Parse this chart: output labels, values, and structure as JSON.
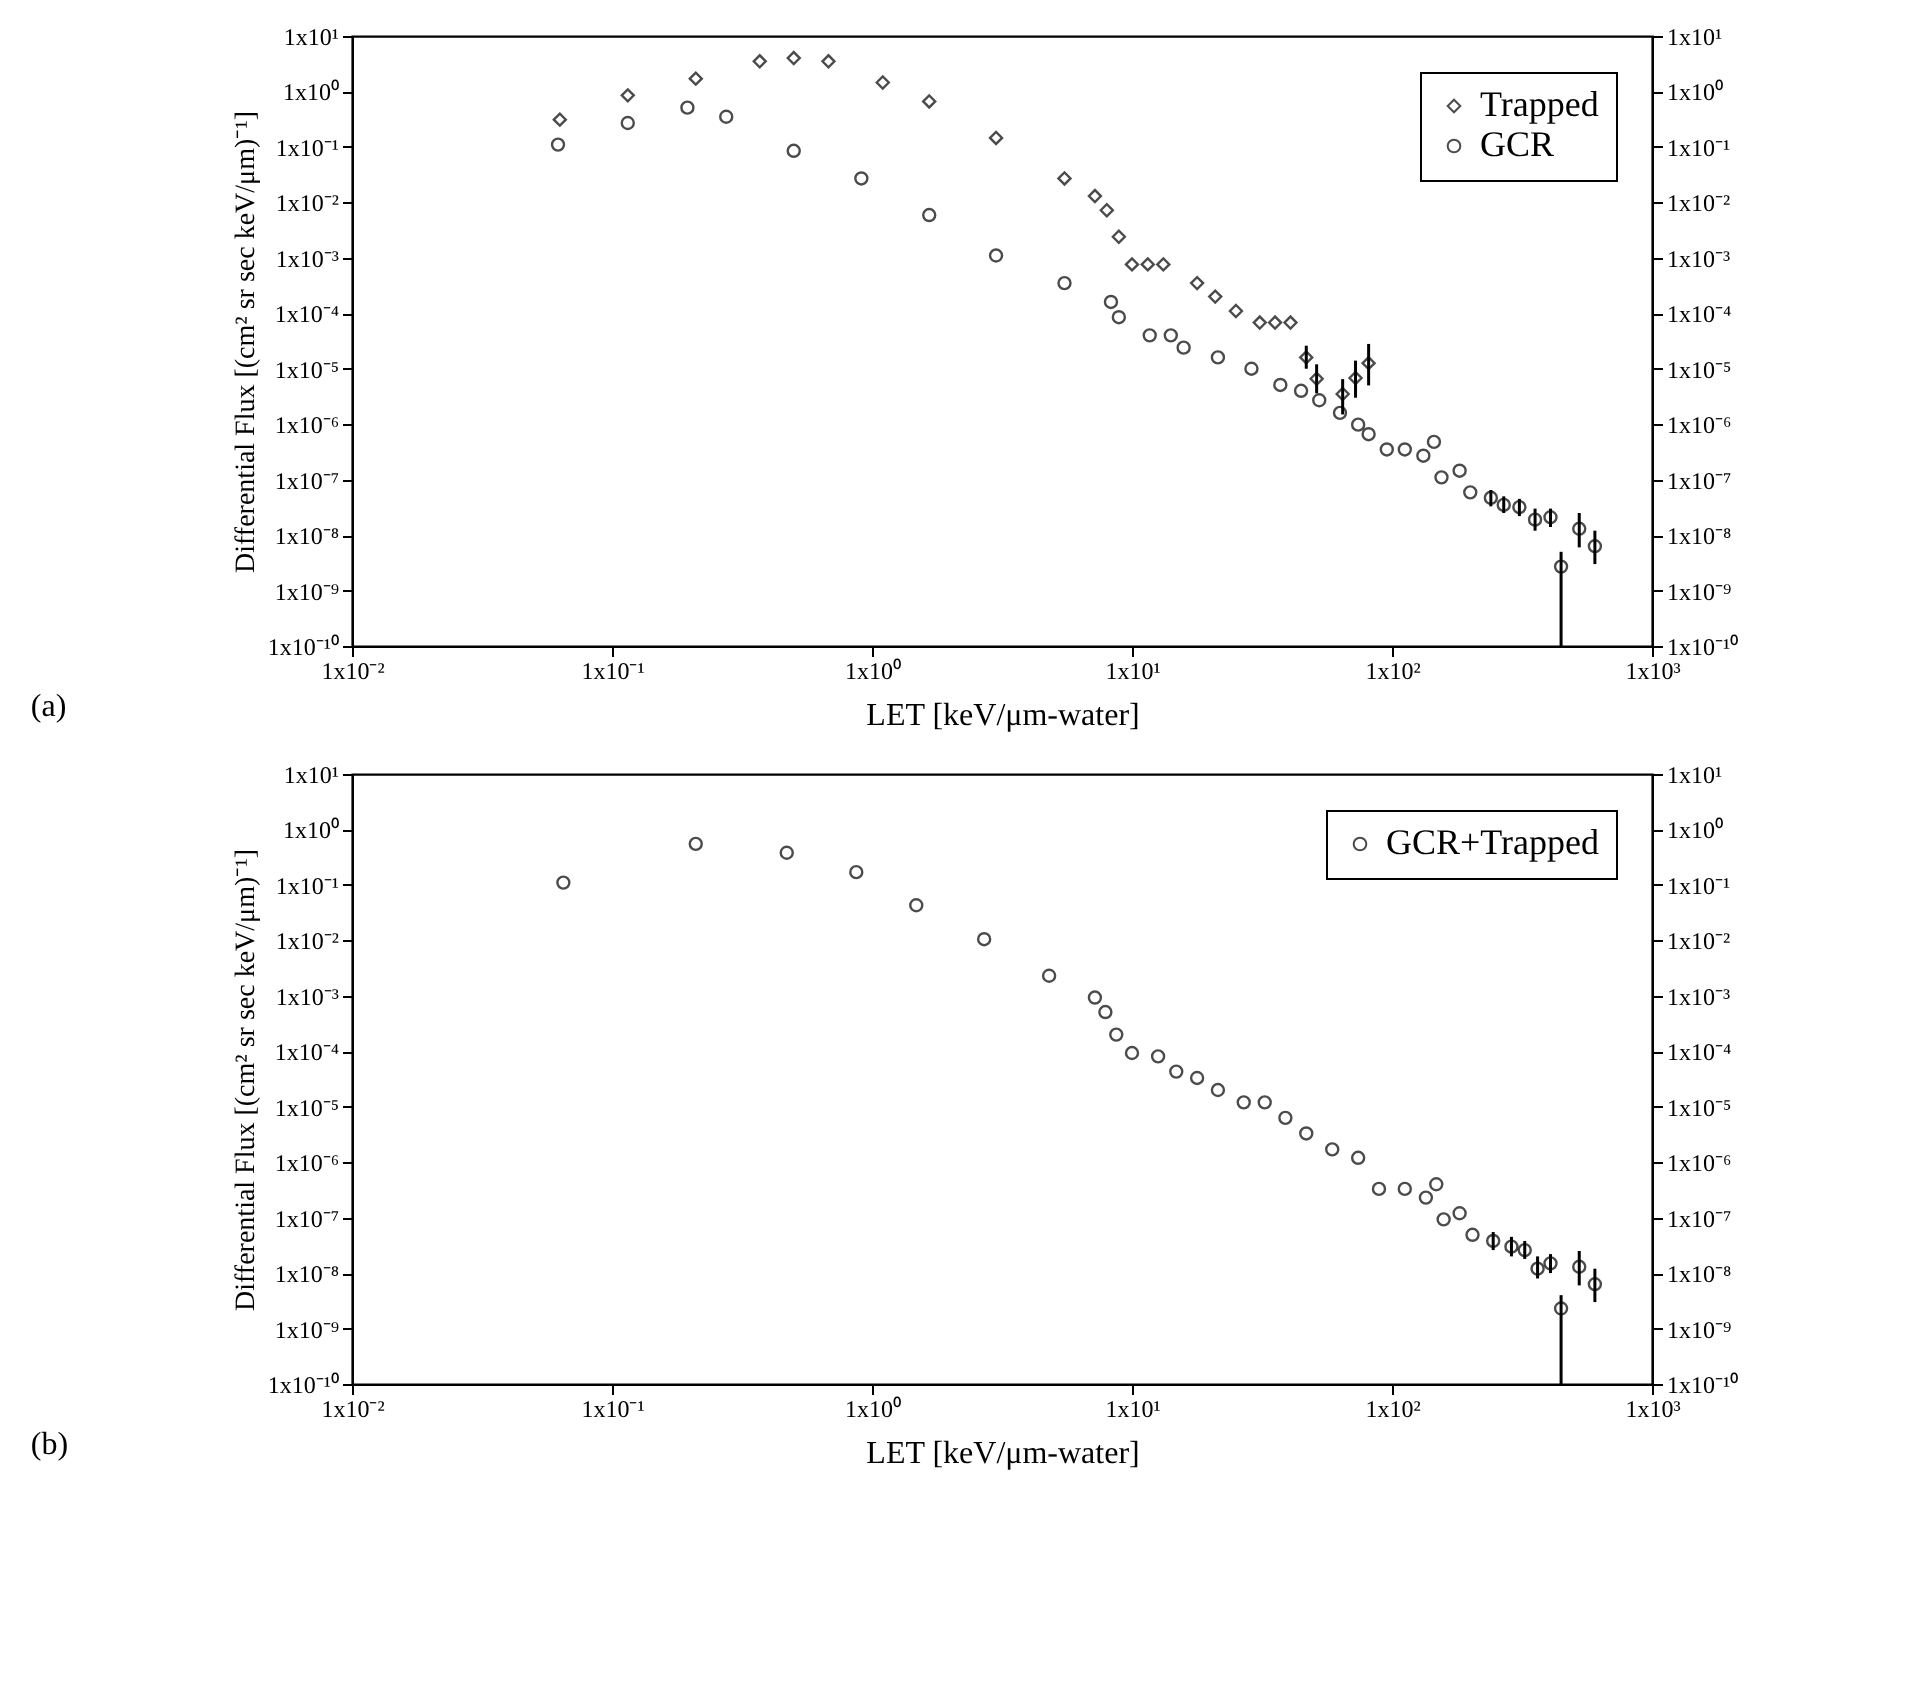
{
  "chart_data": [
    {
      "type": "scatter",
      "xlabel": "LET [keV/μm-water]",
      "ylabel": "Differential Flux [(cm² sr sec keV/μm)⁻¹]",
      "annotations": [
        "(a)"
      ],
      "log": "xy",
      "legend": "top right",
      "xlim": [
        0.01,
        1000
      ],
      "xticks": [
        {
          "value": 0.01,
          "label": "1x10⁻²"
        },
        {
          "value": 0.1,
          "label": "1x10⁻¹"
        },
        {
          "value": 1,
          "label": "1x10⁰"
        },
        {
          "value": 10,
          "label": "1x10¹"
        },
        {
          "value": 100,
          "label": "1x10²"
        },
        {
          "value": 1000,
          "label": "1x10³"
        }
      ],
      "ylim": [
        1e-10,
        10
      ],
      "yticks": [
        {
          "value": 1e-10,
          "label": "1x10⁻¹⁰"
        },
        {
          "value": 1e-09,
          "label": "1x10⁻⁹"
        },
        {
          "value": 1e-08,
          "label": "1x10⁻⁸"
        },
        {
          "value": 1e-07,
          "label": "1x10⁻⁷"
        },
        {
          "value": 1e-06,
          "label": "1x10⁻⁶"
        },
        {
          "value": 1e-05,
          "label": "1x10⁻⁵"
        },
        {
          "value": 0.0001,
          "label": "1x10⁻⁴"
        },
        {
          "value": 0.001,
          "label": "1x10⁻³"
        },
        {
          "value": 0.01,
          "label": "1x10⁻²"
        },
        {
          "value": 0.1,
          "label": "1x10⁻¹"
        },
        {
          "value": 1,
          "label": "1x10⁰"
        },
        {
          "value": 10,
          "label": "1x10¹"
        }
      ],
      "series": [
        {
          "name": "Trapped",
          "color": "#000000",
          "marker": "diamond",
          "x": [
            0.063,
            0.115,
            0.21,
            0.37,
            0.5,
            0.68,
            1.1,
            1.66,
            3.0,
            5.5,
            7.2,
            8.0,
            8.9,
            10,
            11.5,
            13.2,
            17.8,
            20.9,
            25.1,
            31,
            35.5,
            40.7,
            46.8,
            51.3,
            64.6,
            72.4,
            81.3
          ],
          "values": [
            0.31,
            0.85,
            1.7,
            3.5,
            4.0,
            3.5,
            1.45,
            0.66,
            0.145,
            0.027,
            0.013,
            0.0072,
            0.0024,
            0.00076,
            0.00076,
            0.00076,
            0.00035,
            0.0002,
            0.00011,
            6.8e-05,
            6.8e-05,
            6.8e-05,
            1.6e-05,
            6.6e-06,
            3.5e-06,
            6.8e-06,
            1.26e-05
          ],
          "errors": [
            null,
            null,
            null,
            null,
            null,
            null,
            null,
            null,
            null,
            null,
            null,
            null,
            null,
            null,
            null,
            null,
            null,
            null,
            null,
            null,
            null,
            null,
            [
              1e-05,
              2.6e-05
            ],
            [
              3.6e-06,
              1.2e-05
            ],
            [
              1.5e-06,
              6.5e-06
            ],
            [
              3e-06,
              1.4e-05
            ],
            [
              5e-06,
              2.8e-05
            ]
          ]
        },
        {
          "name": "GCR",
          "color": "#000000",
          "marker": "circle",
          "x": [
            0.062,
            0.115,
            0.195,
            0.275,
            0.5,
            0.91,
            1.66,
            3.0,
            5.5,
            8.3,
            8.9,
            11.7,
            14.1,
            15.8,
            21.4,
            28.8,
            37.2,
            44.7,
            52.5,
            63.1,
            74.1,
            81.3,
            95.5,
            112,
            132,
            145,
            155,
            182,
            200,
            240,
            269,
            309,
            355,
            407,
            447,
            525,
            603
          ],
          "values": [
            0.11,
            0.27,
            0.51,
            0.35,
            0.085,
            0.027,
            0.0059,
            0.0011,
            0.00035,
            0.00016,
            8.5e-05,
            4e-05,
            4e-05,
            2.4e-05,
            1.6e-05,
            1e-05,
            5.1e-06,
            4e-06,
            2.7e-06,
            1.6e-06,
            9.8e-07,
            6.6e-07,
            3.5e-07,
            3.5e-07,
            2.7e-07,
            4.8e-07,
            1.1e-07,
            1.45e-07,
            5.9e-08,
            4.7e-08,
            3.5e-08,
            3.2e-08,
            1.9e-08,
            2.1e-08,
            2.7e-09,
            1.3e-08,
            6.3e-09
          ],
          "errors": [
            null,
            null,
            null,
            null,
            null,
            null,
            null,
            null,
            null,
            null,
            null,
            null,
            null,
            null,
            null,
            null,
            null,
            null,
            null,
            null,
            null,
            null,
            null,
            null,
            null,
            null,
            null,
            null,
            null,
            [
              3.3e-08,
              6.5e-08
            ],
            [
              2.5e-08,
              5e-08
            ],
            [
              2.2e-08,
              4.5e-08
            ],
            [
              1.2e-08,
              3e-08
            ],
            [
              1.4e-08,
              3e-08
            ],
            [
              1e-10,
              5e-09
            ],
            [
              6e-09,
              2.5e-08
            ],
            [
              3e-09,
              1.2e-08
            ]
          ]
        }
      ]
    },
    {
      "type": "scatter",
      "xlabel": "LET [keV/μm-water]",
      "ylabel": "Differential Flux [(cm² sr sec keV/μm)⁻¹]",
      "annotations": [
        "(b)"
      ],
      "log": "xy",
      "legend": "top right",
      "xlim": [
        0.01,
        1000
      ],
      "xticks": [
        {
          "value": 0.01,
          "label": "1x10⁻²"
        },
        {
          "value": 0.1,
          "label": "1x10⁻¹"
        },
        {
          "value": 1,
          "label": "1x10⁰"
        },
        {
          "value": 10,
          "label": "1x10¹"
        },
        {
          "value": 100,
          "label": "1x10²"
        },
        {
          "value": 1000,
          "label": "1x10³"
        }
      ],
      "ylim": [
        1e-10,
        10
      ],
      "yticks": [
        {
          "value": 1e-10,
          "label": "1x10⁻¹⁰"
        },
        {
          "value": 1e-09,
          "label": "1x10⁻⁹"
        },
        {
          "value": 1e-08,
          "label": "1x10⁻⁸"
        },
        {
          "value": 1e-07,
          "label": "1x10⁻⁷"
        },
        {
          "value": 1e-06,
          "label": "1x10⁻⁶"
        },
        {
          "value": 1e-05,
          "label": "1x10⁻⁵"
        },
        {
          "value": 0.0001,
          "label": "1x10⁻⁴"
        },
        {
          "value": 0.001,
          "label": "1x10⁻³"
        },
        {
          "value": 0.01,
          "label": "1x10⁻²"
        },
        {
          "value": 0.1,
          "label": "1x10⁻¹"
        },
        {
          "value": 1,
          "label": "1x10⁰"
        },
        {
          "value": 10,
          "label": "1x10¹"
        }
      ],
      "series": [
        {
          "name": "GCR+Trapped",
          "color": "#000000",
          "marker": "circle",
          "x": [
            0.065,
            0.21,
            0.47,
            0.87,
            1.48,
            2.7,
            4.8,
            7.2,
            7.9,
            8.7,
            10,
            12.6,
            14.8,
            17.8,
            21.4,
            26.9,
            32.4,
            38.9,
            46.8,
            58.9,
            74.1,
            89.1,
            112,
            135,
            148,
            158,
            182,
            204,
            245,
            288,
            324,
            363,
            407,
            447,
            525,
            603
          ],
          "values": [
            0.11,
            0.55,
            0.38,
            0.17,
            0.043,
            0.0105,
            0.0023,
            0.00093,
            0.00051,
            0.0002,
            9.3e-05,
            8.1e-05,
            4.3e-05,
            3.3e-05,
            2e-05,
            1.2e-05,
            1.2e-05,
            6.3e-06,
            3.3e-06,
            1.7e-06,
            1.2e-06,
            3.3e-07,
            3.3e-07,
            2.3e-07,
            4e-07,
            9.3e-08,
            1.2e-07,
            4.9e-08,
            3.8e-08,
            3e-08,
            2.6e-08,
            1.2e-08,
            1.5e-08,
            2.3e-09,
            1.3e-08,
            6.3e-09
          ],
          "errors": [
            null,
            null,
            null,
            null,
            null,
            null,
            null,
            null,
            null,
            null,
            null,
            null,
            null,
            null,
            null,
            null,
            null,
            null,
            null,
            null,
            null,
            null,
            null,
            null,
            null,
            null,
            null,
            null,
            [
              2.6e-08,
              5.5e-08
            ],
            [
              2e-08,
              4.5e-08
            ],
            [
              1.8e-08,
              3.8e-08
            ],
            [
              8e-09,
              2e-08
            ],
            [
              1e-08,
              2.2e-08
            ],
            [
              1e-10,
              4e-09
            ],
            [
              6e-09,
              2.5e-08
            ],
            [
              3e-09,
              1.2e-08
            ]
          ]
        }
      ]
    }
  ]
}
